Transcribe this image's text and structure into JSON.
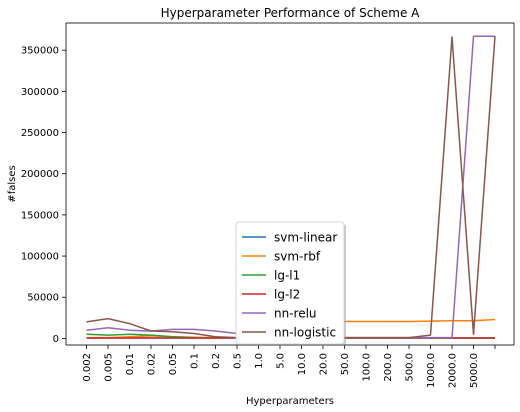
{
  "chart_data": {
    "type": "line",
    "title": "Hyperparameter Performance of Scheme A",
    "xlabel": "Hyperparameters",
    "ylabel": "#falses",
    "categories": [
      "0.002",
      "0.005",
      "0.01",
      "0.02",
      "0.05",
      "0.1",
      "0.2",
      "0.5",
      "1.0",
      "5.0",
      "10.0",
      "20.0",
      "50.0",
      "100.0",
      "200.0",
      "500.0",
      "1000.0",
      "2000.0",
      "5000.0",
      ""
    ],
    "ylim": [
      -8000,
      383000
    ],
    "yticks": [
      0,
      50000,
      100000,
      150000,
      200000,
      250000,
      300000,
      350000
    ],
    "ytick_labels": [
      "0",
      "50000",
      "100000",
      "150000",
      "200000",
      "250000",
      "300000",
      "350000"
    ],
    "grid": false,
    "legend_position": "lower-center",
    "series": [
      {
        "name": "svm-linear",
        "color": "#1f77b4",
        "values": [
          500,
          500,
          500,
          500,
          500,
          500,
          500,
          500,
          500,
          500,
          500,
          500,
          500,
          500,
          500,
          500,
          500,
          500,
          500,
          500
        ]
      },
      {
        "name": "svm-rbf",
        "color": "#ff7f0e",
        "values": [
          1000,
          1000,
          2000,
          3000,
          2000,
          1500,
          1000,
          1000,
          1000,
          3000,
          8000,
          16000,
          20500,
          20500,
          20500,
          20500,
          21000,
          21500,
          21500,
          23000
        ]
      },
      {
        "name": "lg-l1",
        "color": "#2ca02c",
        "values": [
          5000,
          4000,
          5000,
          4000,
          2000,
          1000,
          500,
          500,
          500,
          500,
          500,
          500,
          500,
          500,
          500,
          500,
          500,
          500,
          500,
          500
        ]
      },
      {
        "name": "lg-l2",
        "color": "#d62728",
        "values": [
          500,
          500,
          500,
          500,
          500,
          500,
          500,
          500,
          500,
          500,
          500,
          500,
          500,
          500,
          500,
          500,
          500,
          500,
          500,
          500
        ]
      },
      {
        "name": "nn-relu",
        "color": "#9467bd",
        "values": [
          10000,
          13000,
          10000,
          9000,
          11000,
          11000,
          9000,
          6000,
          4000,
          3000,
          2000,
          1500,
          1000,
          1000,
          1000,
          1000,
          1000,
          1000,
          367000,
          367000
        ]
      },
      {
        "name": "nn-logistic",
        "color": "#8c564b",
        "values": [
          20000,
          24000,
          18000,
          9000,
          8000,
          6000,
          2000,
          1000,
          1000,
          1000,
          1000,
          1000,
          1000,
          1000,
          1000,
          1000,
          4000,
          366000,
          5000,
          367000
        ]
      }
    ]
  }
}
